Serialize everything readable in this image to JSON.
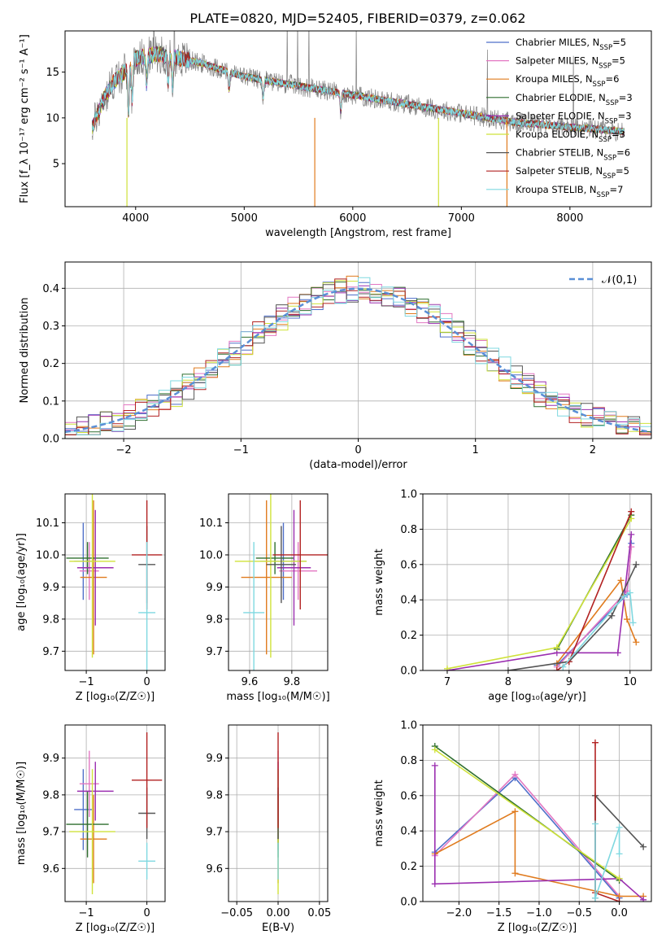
{
  "figure": {
    "title": "PLATE=0820, MJD=52405, FIBERID=0379, z=0.062"
  },
  "colors": {
    "Chabrier MILES": "#4f6fc9",
    "Salpeter MILES": "#e377c2",
    "Kroupa MILES": "#e07b1e",
    "Chabrier ELODIE": "#2f6f2f",
    "Salpeter ELODIE": "#9b2fb0",
    "Kroupa ELODIE": "#cfe23a",
    "Chabrier STELIB": "#555555",
    "Salpeter STELIB": "#b22222",
    "Kroupa STELIB": "#7fd8e0",
    "data": "#808080"
  },
  "chart_data": [
    {
      "id": "spectrum",
      "type": "line",
      "xlabel": "wavelength [Angstrom, rest frame]",
      "ylabel": "Flux [f_λ 10⁻¹⁷ erg cm⁻² s⁻¹ A⁻¹]",
      "xlim": [
        3350,
        8750
      ],
      "ylim": [
        0.3,
        19.5
      ],
      "xticks": [
        4000,
        5000,
        6000,
        7000,
        8000
      ],
      "yticks": [
        5,
        10,
        15
      ],
      "legend_position": "upper right",
      "legend": [
        {
          "name": "Chabrier MILES",
          "nssp": "5"
        },
        {
          "name": "Salpeter MILES",
          "nssp": "5"
        },
        {
          "name": "Kroupa MILES",
          "nssp": "6"
        },
        {
          "name": "Chabrier ELODIE",
          "nssp": "3"
        },
        {
          "name": "Salpeter ELODIE",
          "nssp": "3"
        },
        {
          "name": "Kroupa ELODIE",
          "nssp": "3"
        },
        {
          "name": "Chabrier STELIB",
          "nssp": "6"
        },
        {
          "name": "Salpeter STELIB",
          "nssp": "5"
        },
        {
          "name": "Kroupa STELIB",
          "nssp": "7"
        }
      ],
      "continuum": [
        [
          3600,
          9
        ],
        [
          3700,
          12
        ],
        [
          3800,
          14
        ],
        [
          3900,
          15
        ],
        [
          4000,
          16.5
        ],
        [
          4200,
          17
        ],
        [
          4400,
          16.5
        ],
        [
          4600,
          16
        ],
        [
          5000,
          14.5
        ],
        [
          5500,
          13.5
        ],
        [
          6000,
          12.5
        ],
        [
          6500,
          11.5
        ],
        [
          7000,
          10.5
        ],
        [
          7500,
          9.5
        ],
        [
          8000,
          9
        ],
        [
          8500,
          8.5
        ]
      ],
      "grid": false
    },
    {
      "id": "residuals",
      "type": "line",
      "xlabel": "(data-model)/error",
      "ylabel": "Normed distribution",
      "xlim": [
        -2.5,
        2.5
      ],
      "ylim": [
        0,
        0.47
      ],
      "xticks": [
        -2,
        -1,
        0,
        1,
        2
      ],
      "yticks": [
        0.0,
        0.1,
        0.2,
        0.3,
        0.4
      ],
      "legend": [
        "𝒩(0,1)"
      ],
      "legend_position": "upper right",
      "reference": {
        "name": "𝒩(0,1)",
        "mu": 0,
        "sigma": 1,
        "color": "#5a8fd6"
      },
      "grid": true
    },
    {
      "id": "age_vs_Z",
      "type": "scatter",
      "xlabel": "Z [log₁₀(Z/Z☉)]",
      "ylabel": "age  [log₁₀(age/yr)]",
      "xlim": [
        -1.35,
        0.3
      ],
      "ylim": [
        9.64,
        10.19
      ],
      "xticks": [
        -1,
        0
      ],
      "yticks": [
        9.7,
        9.8,
        9.9,
        10.0,
        10.1
      ],
      "grid": true
    },
    {
      "id": "age_vs_mass",
      "type": "scatter",
      "xlabel": "mass [log₁₀(M/M☉)]",
      "ylabel": "",
      "xlim": [
        9.5,
        9.97
      ],
      "ylim": [
        9.64,
        10.19
      ],
      "xticks": [
        9.6,
        9.8
      ],
      "yticks": [
        9.7,
        9.8,
        9.9,
        10.0,
        10.1
      ],
      "grid": true
    },
    {
      "id": "weight_vs_age",
      "type": "line",
      "xlabel": "age  [log₁₀(age/yr)]",
      "ylabel": "mass weight",
      "xlim": [
        6.6,
        10.35
      ],
      "ylim": [
        0,
        1.0
      ],
      "xticks": [
        7,
        8,
        9,
        10
      ],
      "yticks": [
        0.0,
        0.2,
        0.4,
        0.6,
        0.8,
        1.0
      ],
      "grid": true
    },
    {
      "id": "mass_vs_Z",
      "type": "scatter",
      "xlabel": "Z [log₁₀(Z/Z☉)]",
      "ylabel": "mass [log₁₀(M/M☉)]",
      "xlim": [
        -1.35,
        0.3
      ],
      "ylim": [
        9.51,
        9.99
      ],
      "xticks": [
        -1,
        0
      ],
      "yticks": [
        9.6,
        9.7,
        9.8,
        9.9
      ],
      "grid": true
    },
    {
      "id": "mass_vs_ebv",
      "type": "scatter",
      "xlabel": "E(B-V)",
      "ylabel": "",
      "xlim": [
        -0.06,
        0.06
      ],
      "ylim": [
        9.51,
        9.99
      ],
      "xticks": [
        -0.05,
        0.0,
        0.05
      ],
      "yticks": [
        9.6,
        9.7,
        9.8,
        9.9
      ],
      "grid": true
    },
    {
      "id": "weight_vs_Z",
      "type": "line",
      "xlabel": "Z [log₁₀(Z/Z☉)]",
      "ylabel": "mass weight",
      "xlim": [
        -2.45,
        0.4
      ],
      "ylim": [
        0,
        1.0
      ],
      "xticks": [
        -2.0,
        -1.5,
        -1.0,
        -0.5,
        0.0
      ],
      "yticks": [
        0.0,
        0.2,
        0.4,
        0.6,
        0.8,
        1.0
      ],
      "grid": true
    }
  ],
  "fits": [
    {
      "name": "Chabrier MILES",
      "Z": -1.05,
      "dZ": 0.15,
      "age": 9.98,
      "dage": 0.12,
      "mass": 9.76,
      "dmass": 0.11,
      "ebv": 0.0,
      "w_age": [
        [
          8.8,
          0.03
        ],
        [
          9.95,
          0.43
        ],
        [
          10.02,
          0.72
        ]
      ],
      "w_Z": [
        [
          -2.3,
          0.28
        ],
        [
          -1.3,
          0.7
        ],
        [
          0.0,
          0.02
        ]
      ]
    },
    {
      "name": "Salpeter MILES",
      "Z": -0.95,
      "dZ": 0.16,
      "age": 9.95,
      "dage": 0.09,
      "mass": 9.83,
      "dmass": 0.09,
      "ebv": 0.0,
      "w_age": [
        [
          8.8,
          0.02
        ],
        [
          9.95,
          0.45
        ],
        [
          10.02,
          0.7
        ]
      ],
      "w_Z": [
        [
          -2.3,
          0.26
        ],
        [
          -1.3,
          0.72
        ],
        [
          0.0,
          0.03
        ]
      ]
    },
    {
      "name": "Kroupa MILES",
      "Z": -0.88,
      "dZ": 0.22,
      "age": 9.93,
      "dage": 0.24,
      "mass": 9.68,
      "dmass": 0.12,
      "ebv": 0.0,
      "w_age": [
        [
          8.8,
          0.04
        ],
        [
          9.85,
          0.51
        ],
        [
          9.95,
          0.29
        ],
        [
          10.1,
          0.16
        ]
      ],
      "w_Z": [
        [
          -2.3,
          0.27
        ],
        [
          -1.3,
          0.51
        ],
        [
          -1.3,
          0.16
        ],
        [
          0.0,
          0.03
        ],
        [
          0.3,
          0.03
        ]
      ]
    },
    {
      "name": "Chabrier ELODIE",
      "Z": -0.98,
      "dZ": 0.35,
      "age": 9.99,
      "dage": 0.05,
      "mass": 9.72,
      "dmass": 0.09,
      "ebv": 0.0,
      "w_age": [
        [
          8.8,
          0.12
        ],
        [
          10.02,
          0.88
        ]
      ],
      "w_Z": [
        [
          -2.3,
          0.88
        ],
        [
          0.0,
          0.12
        ]
      ]
    },
    {
      "name": "Salpeter ELODIE",
      "Z": -0.85,
      "dZ": 0.3,
      "age": 9.96,
      "dage": 0.18,
      "mass": 9.81,
      "dmass": 0.08,
      "ebv": 0.0,
      "w_age": [
        [
          7.0,
          0.0
        ],
        [
          8.8,
          0.1
        ],
        [
          9.8,
          0.1
        ],
        [
          10.02,
          0.77
        ]
      ],
      "w_Z": [
        [
          -2.3,
          0.77
        ],
        [
          -2.3,
          0.1
        ],
        [
          0.0,
          0.13
        ],
        [
          0.3,
          0.01
        ]
      ]
    },
    {
      "name": "Kroupa ELODIE",
      "Z": -0.9,
      "dZ": 0.38,
      "age": 9.98,
      "dage": 0.3,
      "mass": 9.7,
      "dmass": 0.17,
      "ebv": 0.0,
      "w_age": [
        [
          7.0,
          0.01
        ],
        [
          8.8,
          0.13
        ],
        [
          10.02,
          0.86
        ]
      ],
      "w_Z": [
        [
          -2.3,
          0.86
        ],
        [
          0.0,
          0.13
        ]
      ]
    },
    {
      "name": "Chabrier STELIB",
      "Z": 0.0,
      "dZ": 0.14,
      "age": 9.97,
      "dage": 0.12,
      "mass": 9.75,
      "dmass": 0.07,
      "ebv": 0.0,
      "w_age": [
        [
          8.0,
          0.0
        ],
        [
          9.0,
          0.05
        ],
        [
          9.7,
          0.31
        ],
        [
          10.1,
          0.6
        ]
      ],
      "w_Z": [
        [
          -0.3,
          0.02
        ],
        [
          -0.3,
          0.6
        ],
        [
          0.3,
          0.31
        ]
      ]
    },
    {
      "name": "Salpeter STELIB",
      "Z": 0.0,
      "dZ": 0.25,
      "age": 10.0,
      "dage": 0.17,
      "mass": 9.84,
      "dmass": 0.13,
      "ebv": 0.0,
      "w_age": [
        [
          8.8,
          0.0
        ],
        [
          9.0,
          0.05
        ],
        [
          10.02,
          0.9
        ]
      ],
      "w_Z": [
        [
          -0.3,
          0.9
        ],
        [
          -0.3,
          0.05
        ],
        [
          0.0,
          0.0
        ]
      ]
    },
    {
      "name": "Kroupa STELIB",
      "Z": 0.0,
      "dZ": 0.14,
      "age": 9.82,
      "dage": 0.22,
      "mass": 9.62,
      "dmass": 0.05,
      "ebv": 0.0,
      "w_age": [
        [
          8.9,
          0.02
        ],
        [
          9.9,
          0.42
        ],
        [
          10.0,
          0.44
        ],
        [
          10.05,
          0.27
        ]
      ],
      "w_Z": [
        [
          -0.3,
          0.44
        ],
        [
          -0.3,
          0.02
        ],
        [
          0.0,
          0.42
        ],
        [
          0.0,
          0.27
        ]
      ]
    }
  ]
}
